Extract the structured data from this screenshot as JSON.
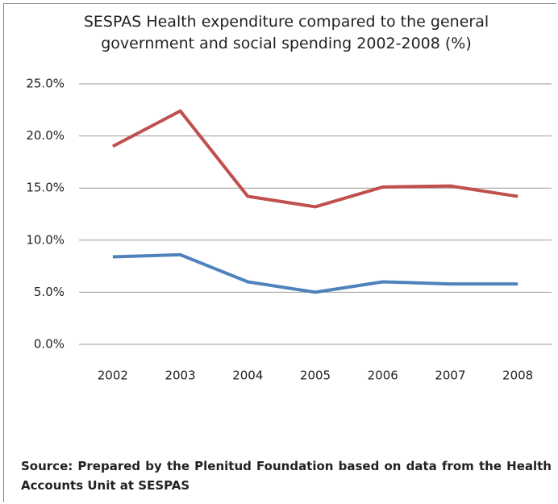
{
  "chart_data": {
    "type": "line",
    "title": "SESPAS Health expenditure compared to the general government and social spending 2002-2008 (%)",
    "categories": [
      "2002",
      "2003",
      "2004",
      "2005",
      "2006",
      "2007",
      "2008"
    ],
    "series": [
      {
        "color": "#c0504d",
        "values": [
          19.0,
          22.4,
          14.2,
          13.2,
          15.1,
          15.2,
          14.2
        ]
      },
      {
        "color": "#4f81bd",
        "values": [
          8.4,
          8.6,
          6.0,
          5.0,
          6.0,
          5.8,
          5.8
        ]
      }
    ],
    "ylim": [
      0,
      25
    ],
    "yticks": [
      {
        "value": 0,
        "label": "0.0%"
      },
      {
        "value": 5,
        "label": "5.0%"
      },
      {
        "value": 10,
        "label": "10.0%"
      },
      {
        "value": 15,
        "label": "15.0%"
      },
      {
        "value": 20,
        "label": "20.0%"
      },
      {
        "value": 25,
        "label": "25.0%"
      }
    ],
    "grid": true,
    "source": "Source: Prepared by the Plenitud Foundation based on data from the Health Accounts Unit at SESPAS"
  }
}
